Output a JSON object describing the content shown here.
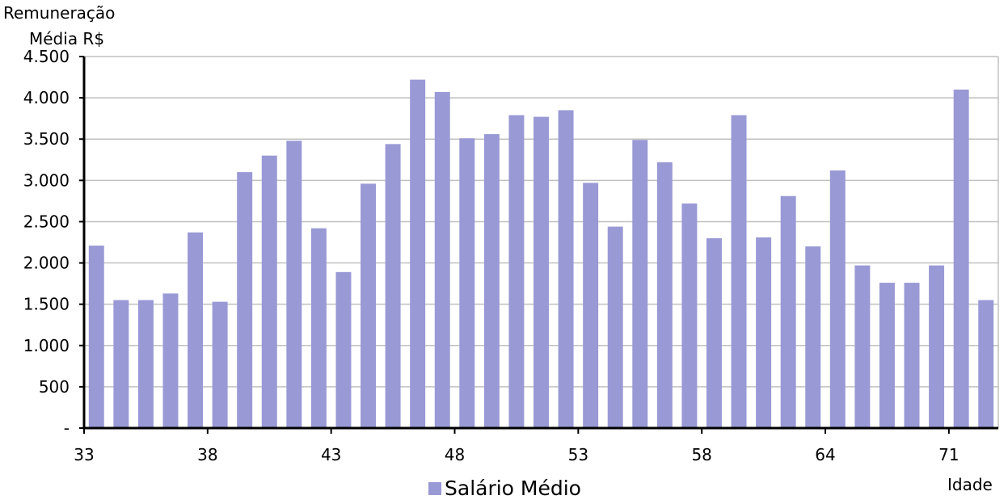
{
  "chart_data": {
    "type": "bar",
    "ylabel": [
      "Remuneração",
      "Média R$"
    ],
    "xlabel": "Idade",
    "ylim": [
      0,
      4500
    ],
    "yticks": [
      {
        "value": 0,
        "label": "-"
      },
      {
        "value": 500,
        "label": "500"
      },
      {
        "value": 1000,
        "label": "1.000"
      },
      {
        "value": 1500,
        "label": "1.500"
      },
      {
        "value": 2000,
        "label": "2.000"
      },
      {
        "value": 2500,
        "label": "2.500"
      },
      {
        "value": 3000,
        "label": "3.000"
      },
      {
        "value": 3500,
        "label": "3.500"
      },
      {
        "value": 4000,
        "label": "4.000"
      },
      {
        "value": 4500,
        "label": "4.500"
      }
    ],
    "categories": [
      "33",
      "34",
      "35",
      "36",
      "37",
      "38",
      "39",
      "40",
      "41",
      "42",
      "43",
      "44",
      "45",
      "46",
      "47",
      "48",
      "49",
      "50",
      "51",
      "52",
      "53",
      "54",
      "55",
      "56",
      "57",
      "58",
      "59",
      "60",
      "61",
      "62",
      "64",
      "65",
      "66",
      "67",
      "68",
      "71",
      "72"
    ],
    "xtick_labels": [
      "33",
      "38",
      "43",
      "48",
      "53",
      "58",
      "64",
      "71"
    ],
    "grid": true,
    "legend_position": "bottom",
    "series": [
      {
        "name": "Salário Médio",
        "color": "#9999d6",
        "values": [
          2210,
          1550,
          1550,
          1630,
          2370,
          1530,
          3100,
          3300,
          3480,
          2420,
          1890,
          2960,
          3440,
          4220,
          4070,
          3510,
          3560,
          3790,
          3770,
          3850,
          2970,
          2440,
          3490,
          3220,
          2720,
          2300,
          3790,
          2310,
          2810,
          2200,
          3120,
          1970,
          1760,
          1760,
          1970,
          4100,
          1550
        ]
      }
    ]
  }
}
